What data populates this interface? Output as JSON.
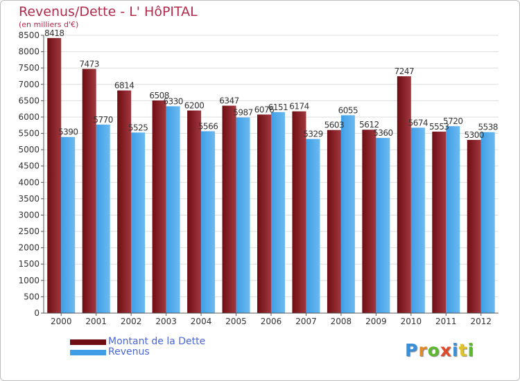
{
  "title": "Revenus/Dette - L' HôPITAL",
  "subtitle": "(en milliers d'€)",
  "colors": {
    "dette": "#6e0d13",
    "dette_light": "#a1383f",
    "revenus": "#3f9ee6",
    "revenus_light": "#6cbaf0",
    "text": "#b22a4a",
    "legend_text": "#4a66d9",
    "grid": "#dddddd"
  },
  "chart_data": {
    "type": "bar",
    "categories": [
      "2000",
      "2001",
      "2002",
      "2003",
      "2004",
      "2005",
      "2006",
      "2007",
      "2008",
      "2009",
      "2010",
      "2011",
      "2012"
    ],
    "series": [
      {
        "name": "Montant de la Dette",
        "values": [
          8418,
          7473,
          6814,
          6508,
          6200,
          6347,
          6076,
          6174,
          5603,
          5612,
          7247,
          5553,
          5300
        ]
      },
      {
        "name": "Revenus",
        "values": [
          5390,
          5770,
          5525,
          6330,
          5566,
          5987,
          6151,
          5329,
          6055,
          5360,
          5674,
          5720,
          5538
        ]
      }
    ],
    "ylim": [
      0,
      8500
    ],
    "yticks": [
      0,
      500,
      1000,
      1500,
      2000,
      2500,
      3000,
      3500,
      4000,
      4500,
      5000,
      5500,
      6000,
      6500,
      7000,
      7500,
      8000,
      8500
    ],
    "grid": true,
    "legend_position": "bottom-left"
  },
  "legend": {
    "items": [
      {
        "label": "Montant de la Dette"
      },
      {
        "label": "Revenus"
      }
    ]
  },
  "logo": {
    "letters": [
      "P",
      "r",
      "o",
      "x",
      "i",
      "t",
      "i"
    ],
    "colors": [
      "#3a8fd9",
      "#e08a2a",
      "#5cb82e",
      "#e04a2a",
      "#3a8fd9",
      "#e0c22a",
      "#5cb82e"
    ]
  }
}
